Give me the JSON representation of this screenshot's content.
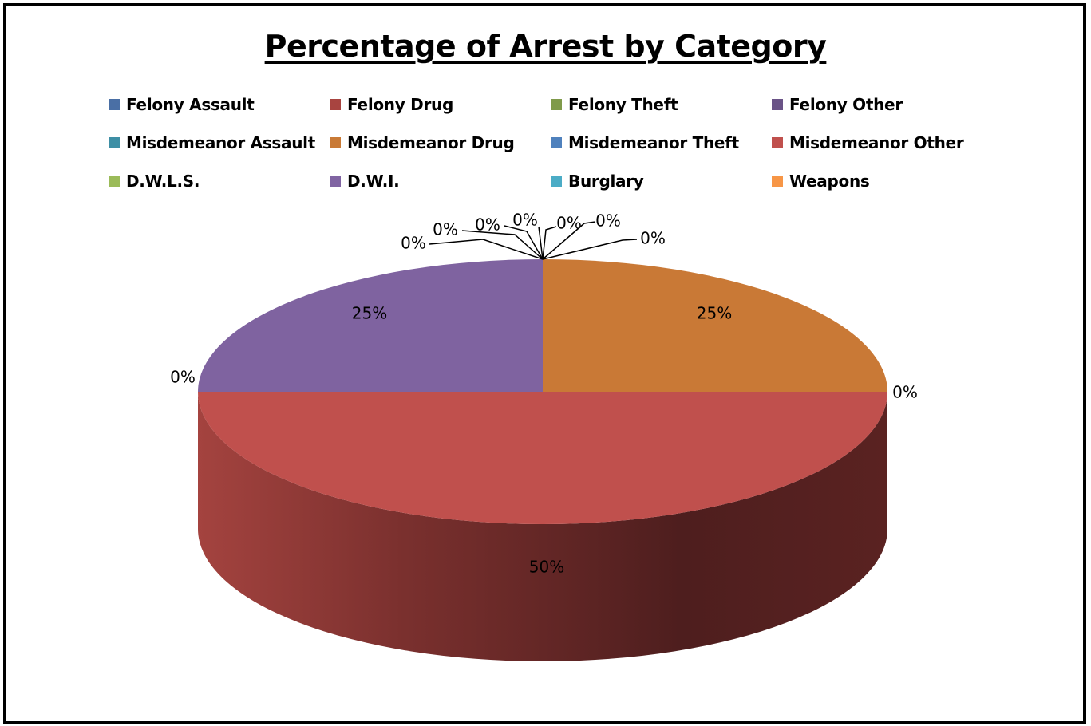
{
  "chart_data": {
    "type": "pie",
    "title": "Percentage of Arrest by Category",
    "categories": [
      "Felony Assault",
      "Felony Drug",
      "Felony Theft",
      "Felony Other",
      "Misdemeanor Assault",
      "Misdemeanor Drug",
      "Misdemeanor Theft",
      "Misdemeanor Other",
      "D.W.L.S.",
      "D.W.I.",
      "Burglary",
      "Weapons"
    ],
    "values": [
      0,
      0,
      0,
      0,
      0,
      25,
      0,
      50,
      0,
      25,
      0,
      0
    ],
    "data_labels": [
      "0%",
      "0%",
      "0%",
      "0%",
      "0%",
      "25%",
      "0%",
      "50%",
      "0%",
      "25%",
      "0%",
      "0%"
    ],
    "colors": [
      "#4F81BD",
      "#C0504D",
      "#9BBB59",
      "#8064A2",
      "#4BACC6",
      "#F79646",
      "#4F81BD",
      "#C0504D",
      "#9BBB59",
      "#8064A2",
      "#4BACC6",
      "#F79646"
    ],
    "legend_colors": [
      "#4A6FA5",
      "#A84440",
      "#7F9A4A",
      "#6A5387",
      "#3E8FA5",
      "#C97A36",
      "#4F81BD",
      "#C0504D",
      "#9BBB59",
      "#8064A2",
      "#4BACC6",
      "#F79646"
    ],
    "slice_colors": {
      "Misdemeanor Drug": "#C97936",
      "Misdemeanor Other": "#C0504D",
      "D.W.I.": "#7F63A0"
    },
    "style": "3D pie",
    "legend_position": "top",
    "percent_scale": 100
  }
}
